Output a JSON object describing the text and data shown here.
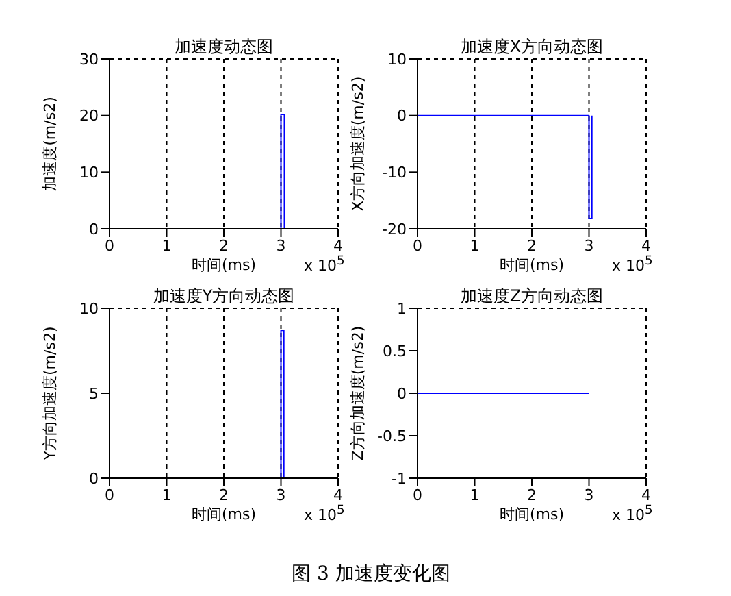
{
  "chart_data": [
    {
      "type": "line",
      "title": "加速度动态图",
      "xlabel": "时间(ms)",
      "ylabel": "加速度(m/s2)",
      "annotations": [
        "x 10$^{5}$"
      ],
      "x": [
        0,
        3,
        3,
        3.06,
        3.06
      ],
      "series": [
        {
          "color": "#0000ff",
          "values": [
            0,
            0,
            20.2,
            20.2,
            0
          ]
        }
      ],
      "xlim": [
        0,
        4
      ],
      "xticks": [
        0,
        1,
        2,
        3,
        4
      ],
      "ylim": [
        0,
        30
      ],
      "yticks": [
        0,
        10,
        20,
        30
      ],
      "grid": true,
      "legend": false
    },
    {
      "type": "line",
      "title": "加速度X方向动态图",
      "xlabel": "时间(ms)",
      "ylabel": "X方向加速度(m/s2)",
      "annotations": [
        "x 10$^{5}$"
      ],
      "x": [
        0,
        3,
        3,
        3.05,
        3.05
      ],
      "series": [
        {
          "color": "#0000ff",
          "values": [
            0,
            0,
            -18.2,
            -18.2,
            0
          ]
        }
      ],
      "xlim": [
        0,
        4
      ],
      "xticks": [
        0,
        1,
        2,
        3,
        4
      ],
      "ylim": [
        -20,
        10
      ],
      "yticks": [
        -20,
        -10,
        0,
        10
      ],
      "grid": true,
      "legend": false
    },
    {
      "type": "line",
      "title": "加速度Y方向动态图",
      "xlabel": "时间(ms)",
      "ylabel": "Y方向加速度(m/s2)",
      "annotations": [
        "x 10$^{5}$"
      ],
      "x": [
        0,
        3,
        3,
        3.05,
        3.05
      ],
      "series": [
        {
          "color": "#0000ff",
          "values": [
            0,
            0,
            8.7,
            8.7,
            0
          ]
        }
      ],
      "xlim": [
        0,
        4
      ],
      "xticks": [
        0,
        1,
        2,
        3,
        4
      ],
      "ylim": [
        0,
        10
      ],
      "yticks": [
        0,
        5,
        10
      ],
      "grid": true,
      "legend": false
    },
    {
      "type": "line",
      "title": "加速度Z方向动态图",
      "xlabel": "时间(ms)",
      "ylabel": "Z方向加速度(m/s2)",
      "annotations": [
        "x 10$^{5}$",
        "图 3 加速度变化图"
      ],
      "x": [
        0,
        3
      ],
      "series": [
        {
          "color": "#0000ff",
          "values": [
            0,
            0
          ]
        }
      ],
      "xlim": [
        0,
        4
      ],
      "xticks": [
        0,
        1,
        2,
        3,
        4
      ],
      "ylim": [
        -1,
        1
      ],
      "yticks": [
        -1,
        -0.5,
        0,
        0.5,
        1
      ],
      "grid": true,
      "legend": false
    }
  ]
}
